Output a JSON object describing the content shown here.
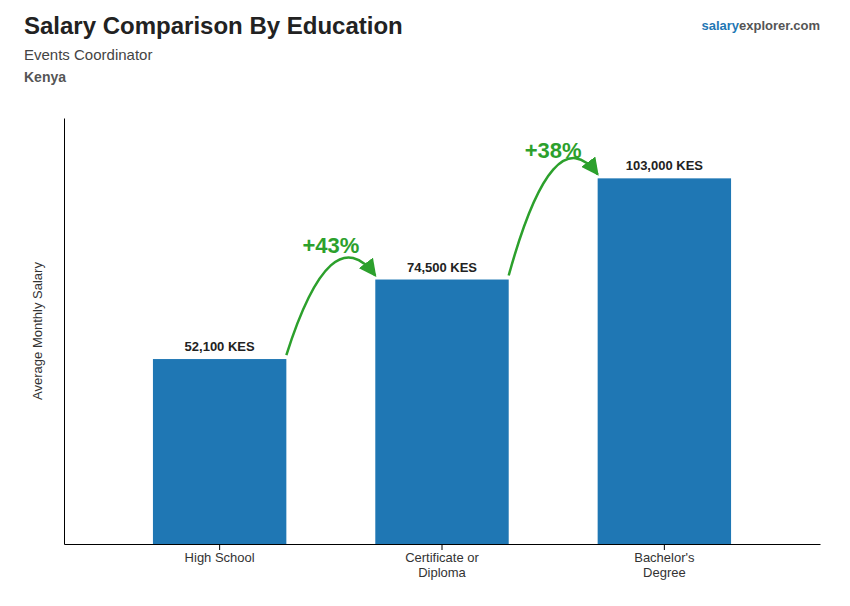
{
  "chart_data": {
    "type": "bar",
    "title": "Salary Comparison By Education",
    "subtitle": [
      "Events Coordinator",
      "Kenya"
    ],
    "credit": [
      "salary",
      "explorer.com"
    ],
    "y_label": "Average Monthly Salary",
    "categories": [
      "High School",
      "Certificate or\nDiploma",
      "Bachelor's\nDegree"
    ],
    "values": [
      52100,
      74500,
      103000
    ],
    "value_labels": [
      "52,100 KES",
      "74,500 KES",
      "103,000 KES"
    ],
    "data_labels": true,
    "annotations": [
      "+43%",
      "+38%"
    ],
    "ylim": [
      0,
      120000
    ],
    "tick_labels": "x",
    "grid": false
  }
}
